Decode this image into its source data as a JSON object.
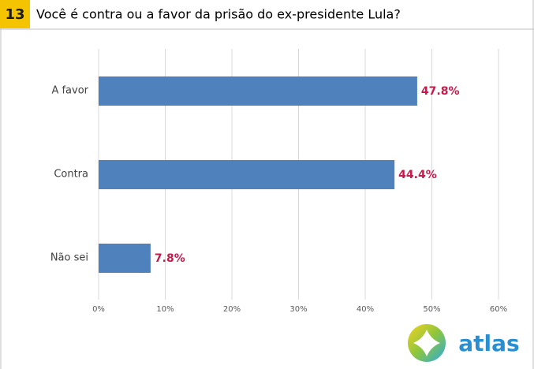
{
  "chart_data": {
    "type": "bar",
    "orientation": "horizontal",
    "number": "13",
    "title": "Você é contra ou a favor da prisão do ex-presidente Lula?",
    "categories": [
      "A favor",
      "Contra",
      "Não sei"
    ],
    "values": [
      47.8,
      44.4,
      7.8
    ],
    "value_labels": [
      "47.8%",
      "44.4%",
      "7.8%"
    ],
    "color": "#4f81bd",
    "xlim": [
      0,
      60
    ],
    "xticks": [
      {
        "value": 0,
        "label": "0%"
      },
      {
        "value": 10,
        "label": "10%"
      },
      {
        "value": 20,
        "label": "20%"
      },
      {
        "value": 30,
        "label": "30%"
      },
      {
        "value": 40,
        "label": "40%"
      },
      {
        "value": 50,
        "label": "50%"
      },
      {
        "value": 60,
        "label": "60%"
      }
    ],
    "grid": true
  },
  "logo": "atlas"
}
